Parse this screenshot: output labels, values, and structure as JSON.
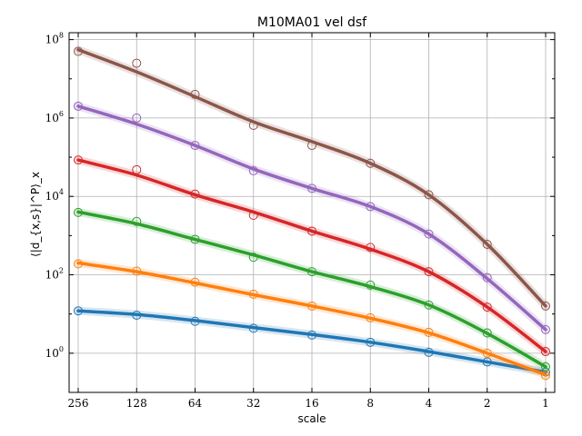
{
  "chart_data": {
    "type": "line",
    "title": "M10MA01 vel dsf",
    "xlabel": "scale",
    "ylabel": "⟨|d_{x,s}|^P⟩_x",
    "x_scale": "log2",
    "x_reversed": true,
    "y_scale": "log",
    "xlim": [
      256,
      1
    ],
    "ylim": [
      0.1,
      150000000
    ],
    "x_ticks": [
      256,
      128,
      64,
      32,
      16,
      8,
      4,
      2,
      1
    ],
    "x_tick_labels": [
      "256",
      "128",
      "64",
      "32",
      "16",
      "8",
      "4",
      "2",
      "1"
    ],
    "y_ticks": [
      1,
      100,
      10000,
      1000000,
      100000000
    ],
    "y_tick_labels": [
      {
        "base": "10",
        "exp": "0"
      },
      {
        "base": "10",
        "exp": "2"
      },
      {
        "base": "10",
        "exp": "4"
      },
      {
        "base": "10",
        "exp": "6"
      },
      {
        "base": "10",
        "exp": "8"
      }
    ],
    "grid": true,
    "x": [
      256,
      128,
      64,
      32,
      16,
      8,
      4,
      2,
      1
    ],
    "series": [
      {
        "color": "#1f77b4",
        "curve": [
          12,
          9.7,
          6.8,
          4.5,
          3.0,
          1.9,
          1.1,
          0.6,
          0.33
        ],
        "markers": [
          12,
          9.3,
          6.5,
          4.3,
          2.9,
          1.9,
          1.05,
          0.6,
          0.33
        ]
      },
      {
        "color": "#ff7f0e",
        "curve": [
          200,
          120,
          62,
          31,
          16,
          7.8,
          3.3,
          1.0,
          0.28
        ],
        "markers": [
          190,
          125,
          65,
          32,
          16,
          8.0,
          3.4,
          1.0,
          0.27
        ]
      },
      {
        "color": "#2ca02c",
        "curve": [
          4000,
          2000,
          800,
          320,
          120,
          50,
          17,
          3.2,
          0.45
        ],
        "markers": [
          3900,
          2300,
          800,
          280,
          120,
          55,
          17,
          3.3,
          0.45
        ]
      },
      {
        "color": "#d62728",
        "curve": [
          85000,
          35000,
          11000,
          4000,
          1300,
          450,
          120,
          15,
          1.1
        ],
        "markers": [
          85000,
          48000,
          11500,
          3300,
          1300,
          500,
          120,
          15,
          1.1
        ]
      },
      {
        "color": "#9467bd",
        "curve": [
          2000000,
          700000,
          200000,
          50000,
          16000,
          5500,
          1100,
          80,
          4
        ],
        "markers": [
          2000000,
          1000000,
          200000,
          45000,
          16000,
          5500,
          1100,
          85,
          4
        ]
      },
      {
        "color": "#8c564b",
        "curve": [
          55000000,
          15000000,
          3500000,
          800000,
          250000,
          70000,
          11000,
          600,
          16
        ],
        "markers": [
          50000000,
          25000000,
          4000000,
          650000,
          200000,
          70000,
          11000,
          600,
          16
        ]
      }
    ]
  }
}
